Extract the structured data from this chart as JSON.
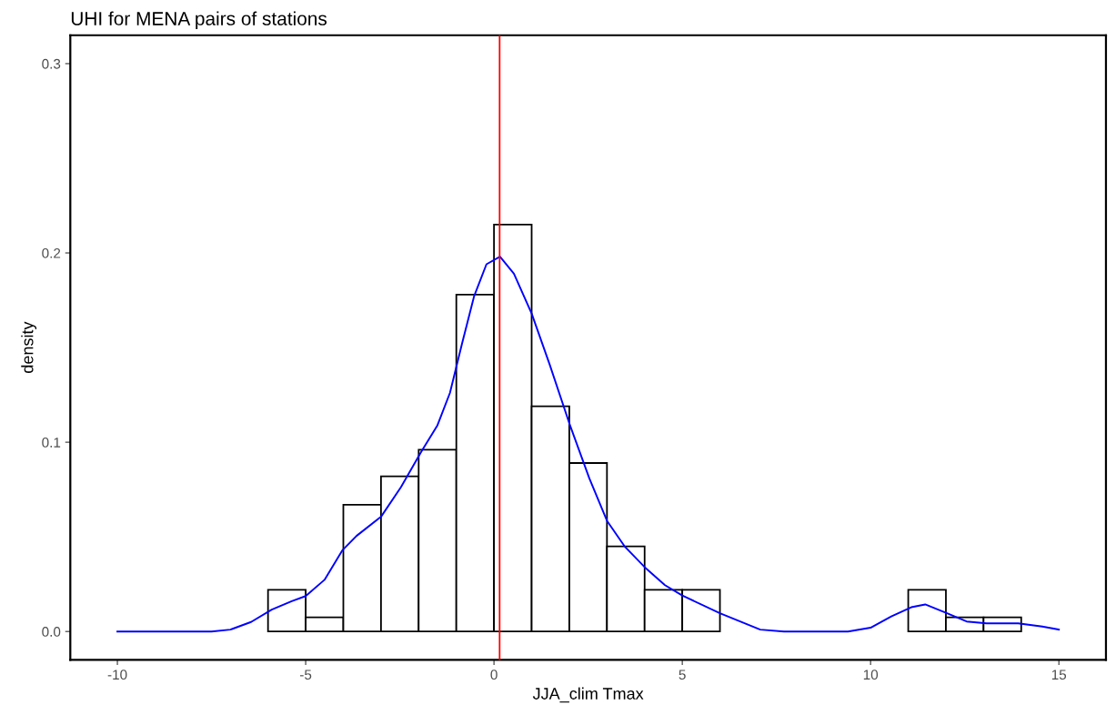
{
  "chart_data": {
    "type": "histogram",
    "title": "UHI for MENA pairs of stations",
    "xlabel": "JJA_clim Tmax",
    "ylabel": "density",
    "xlim": [
      -11.25,
      16.25
    ],
    "xticks": [
      {
        "value": -10,
        "label": "-10"
      },
      {
        "value": -5,
        "label": "-5"
      },
      0,
      5,
      10,
      15
    ],
    "ylim": [
      -0.015,
      0.315
    ],
    "yticks": [
      {
        "value": 0,
        "label": "0.0"
      },
      0.1,
      0.2,
      0.3
    ],
    "bins": [
      -6,
      -5,
      -4,
      -3,
      -2,
      -1,
      0,
      1,
      2,
      3,
      4,
      5,
      6,
      7,
      8,
      9,
      10,
      11,
      12,
      13,
      14
    ],
    "series": [
      {
        "color": "#ffffff",
        "values": [
          0.022,
          0.0075,
          0.067,
          0.082,
          0.096,
          0.178,
          0.215,
          0.119,
          0.089,
          0.045,
          0.022,
          0.022,
          null,
          null,
          null,
          null,
          null,
          0.022,
          0.0075,
          0.0075
        ]
      },
      {
        "type": "line",
        "color": "#0000ff",
        "x": [
          -10,
          -7.5,
          -7.0,
          -6.45,
          -5.9,
          -5.37,
          -5.0,
          -4.5,
          -4.03,
          -3.65,
          -3.0,
          -2.47,
          -1.93,
          -1.5,
          -1.17,
          -0.85,
          -0.53,
          -0.2,
          0.16,
          0.53,
          1.0,
          1.48,
          2.0,
          2.53,
          3.0,
          3.48,
          4.0,
          4.54,
          5.0,
          6.0,
          7.07,
          7.7,
          9.4,
          10.0,
          10.55,
          11.08,
          11.45,
          12.03,
          12.55,
          13.08,
          13.92,
          14.56,
          15.0
        ],
        "values": [
          0,
          0,
          0.001,
          0.005,
          0.0116,
          0.016,
          0.0187,
          0.0273,
          0.0428,
          0.0505,
          0.0606,
          0.0763,
          0.095,
          0.109,
          0.126,
          0.152,
          0.177,
          0.194,
          0.198,
          0.189,
          0.168,
          0.141,
          0.11,
          0.081,
          0.0585,
          0.0447,
          0.034,
          0.0245,
          0.019,
          0.0096,
          0.001,
          0,
          0,
          0.002,
          0.008,
          0.0128,
          0.0143,
          0.0096,
          0.0053,
          0.0043,
          0.0043,
          0.0026,
          0.001
        ]
      }
    ],
    "ref_lines": [
      {
        "axis": "x",
        "value": 0.15,
        "color": "#ff0000"
      }
    ]
  }
}
